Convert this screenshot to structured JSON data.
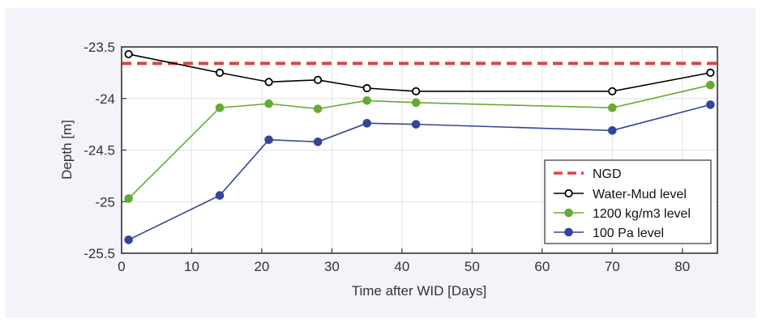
{
  "chart_data": {
    "type": "line",
    "xlabel": "Time after WID [Days]",
    "ylabel": "Depth [m]",
    "xlim": [
      0,
      85
    ],
    "ylim": [
      -25.5,
      -23.5
    ],
    "xticks": [
      0,
      10,
      20,
      30,
      40,
      50,
      60,
      70,
      80
    ],
    "yticks": [
      -23.5,
      -24,
      -24.5,
      -25,
      -25.5
    ],
    "xtick_labels": [
      "0",
      "10",
      "20",
      "30",
      "40",
      "50",
      "60",
      "70",
      "80"
    ],
    "ytick_labels": [
      "-23.5",
      "-24",
      "-24.5",
      "-25",
      "-25.5"
    ],
    "grid": true,
    "legend_position": "bottom-right",
    "reference_line": {
      "name": "NGD",
      "y": -23.66,
      "color": "#dd4444",
      "style": "dashed"
    },
    "series": [
      {
        "name": "Water-Mud level",
        "color": "#000000",
        "marker": "open-circle",
        "x": [
          1,
          14,
          21,
          28,
          35,
          42,
          70,
          84
        ],
        "y": [
          -23.57,
          -23.75,
          -23.84,
          -23.82,
          -23.9,
          -23.93,
          -23.93,
          -23.75
        ]
      },
      {
        "name": "1200 kg/m3 level",
        "color": "#66aa33",
        "marker": "filled-circle",
        "x": [
          1,
          14,
          21,
          28,
          35,
          42,
          70,
          84
        ],
        "y": [
          -24.97,
          -24.09,
          -24.05,
          -24.1,
          -24.02,
          -24.04,
          -24.09,
          -23.87
        ]
      },
      {
        "name": "100 Pa level",
        "color": "#334499",
        "marker": "filled-circle",
        "x": [
          1,
          14,
          21,
          28,
          35,
          42,
          70,
          84
        ],
        "y": [
          -25.37,
          -24.94,
          -24.4,
          -24.42,
          -24.24,
          -24.25,
          -24.31,
          -24.06
        ]
      }
    ]
  }
}
